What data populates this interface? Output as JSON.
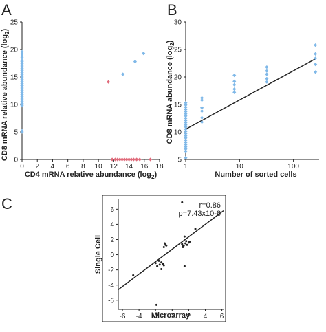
{
  "chart_data": [
    {
      "panel": "A",
      "type": "scatter",
      "xlabel": "CD4 mRNA relative abundance (log2)",
      "xlabel_main": "CD4 mRNA relative abundance (log",
      "xlabel_sub": "2",
      "xlabel_end": ")",
      "ylabel_main": "CD8 mRNA relative abundance (log",
      "ylabel_sub": "2",
      "ylabel_end": ")",
      "xlim": [
        0,
        18
      ],
      "ylim": [
        0,
        25
      ],
      "xticks": [
        "0",
        "2",
        "4",
        "6",
        "8",
        "10",
        "12",
        "14",
        "16",
        "18"
      ],
      "yticks": [
        "0",
        "5",
        "10",
        "15",
        "20",
        "25"
      ],
      "series": [
        {
          "color": "#7fb8e8",
          "x": [
            0,
            0,
            0,
            0,
            0,
            0,
            0,
            0,
            0,
            0,
            0,
            0,
            0,
            0,
            0,
            0,
            0,
            0,
            0,
            0,
            0,
            0,
            0,
            0,
            0,
            0,
            0,
            0,
            0,
            0,
            0,
            0,
            13.2,
            14.8,
            15.9
          ],
          "y": [
            19.6,
            19.2,
            18.5,
            18,
            17.4,
            17,
            16.6,
            16.2,
            15.8,
            15.4,
            15,
            14.6,
            14.2,
            13.8,
            13.4,
            13,
            12.6,
            12.2,
            11.8,
            11.4,
            11,
            10.6,
            10.2,
            9.8,
            12.1,
            13.5,
            16.4,
            17.8,
            18.8,
            5.2,
            5,
            10,
            15.5,
            17.8,
            19.3
          ]
        },
        {
          "color": "#e06a7a",
          "x": [
            11.3,
            11.8,
            12.2,
            12.5,
            12.8,
            13.1,
            13.4,
            13.7,
            14,
            14.3,
            14.6,
            15,
            15.4,
            16.8
          ],
          "y": [
            14.1,
            0,
            0,
            0,
            0,
            0,
            0,
            0,
            0,
            0,
            0,
            0,
            0,
            0
          ]
        }
      ]
    },
    {
      "panel": "B",
      "type": "scatter",
      "xlabel": "Number of sorted cells",
      "ylabel_main": "CD8 mRNA abundance (log",
      "ylabel_sub": "2",
      "ylabel_end": ")",
      "xscale": "log2",
      "xlim": [
        1,
        300
      ],
      "ylim": [
        5,
        30
      ],
      "xticks": [
        "1",
        "10",
        "100"
      ],
      "xtick_values": [
        1,
        10,
        100
      ],
      "yticks": [
        "5",
        "10",
        "15",
        "20",
        "25",
        "30"
      ],
      "points": {
        "color": "#7fb8e8",
        "x": [
          1,
          1,
          1,
          1,
          1,
          1,
          1,
          1,
          1,
          1,
          1,
          1,
          1,
          1,
          1,
          1,
          1,
          1,
          1,
          1,
          1,
          1,
          1,
          1,
          2,
          2,
          2,
          2,
          2,
          2,
          8,
          8,
          8,
          8,
          8,
          32,
          32,
          32,
          32,
          32,
          256,
          256,
          256,
          256,
          256
        ],
        "y": [
          15.3,
          14.9,
          14.5,
          14.1,
          13.7,
          13.3,
          12.9,
          12.5,
          12.1,
          11.7,
          11.3,
          10.9,
          10.5,
          10.1,
          9.7,
          9.3,
          8.9,
          8.5,
          8.1,
          7.7,
          7.3,
          6.9,
          6.5,
          5.3,
          16.2,
          15.8,
          14.4,
          13.8,
          12.6,
          11.8,
          20.3,
          19.2,
          18.6,
          17.8,
          17.2,
          21.8,
          21.1,
          20.5,
          19.7,
          19.1,
          25.8,
          24.2,
          23.4,
          22.3,
          20.9
        ]
      },
      "fit_line": {
        "x": [
          1,
          256
        ],
        "y": [
          10.5,
          23.3
        ],
        "color": "#222222"
      }
    },
    {
      "panel": "C",
      "type": "scatter",
      "xlabel": "Microarray",
      "ylabel": "Single Cell",
      "xlim": [
        -6.5,
        6.2
      ],
      "ylim": [
        -7.2,
        7.3
      ],
      "xticks": [
        "-6",
        "-4",
        "-2",
        "0",
        "2",
        "4",
        "6"
      ],
      "xtick_values": [
        -6,
        -4,
        -2,
        0,
        2,
        4,
        6
      ],
      "yticks": [
        "-6",
        "-4",
        "-2",
        "0",
        "2",
        "4",
        "6"
      ],
      "ytick_values": [
        -6,
        -4,
        -2,
        0,
        2,
        4,
        6
      ],
      "annotation_r": "r=0.86",
      "annotation_p": "p=7.43x10-8",
      "points": {
        "color": "#222222",
        "x": [
          -4.7,
          -2,
          -1.8,
          -1.5,
          -1.3,
          -1.1,
          -1,
          -1.3,
          -1.6,
          -0.9,
          -1,
          -0.8,
          -0.7,
          1.2,
          1.4,
          1.6,
          1.8,
          2,
          1.3,
          1.5,
          1.7,
          2.1,
          1.2,
          2.8,
          1.5,
          1.3,
          -1.9
        ],
        "y": [
          -2.7,
          -1.1,
          -1.5,
          -1.3,
          -1,
          -1.2,
          -1.4,
          -1.9,
          -0.8,
          1.5,
          1,
          1.3,
          1.2,
          1.4,
          1.2,
          1.5,
          1.3,
          1.6,
          1.1,
          2.4,
          1.8,
          1.7,
          6.9,
          3.4,
          -1.5,
          1,
          -6.6
        ]
      },
      "fit_line": {
        "x": [
          -6.5,
          6.2
        ],
        "y": [
          -4.6,
          5.8
        ],
        "color": "#222222"
      }
    }
  ]
}
